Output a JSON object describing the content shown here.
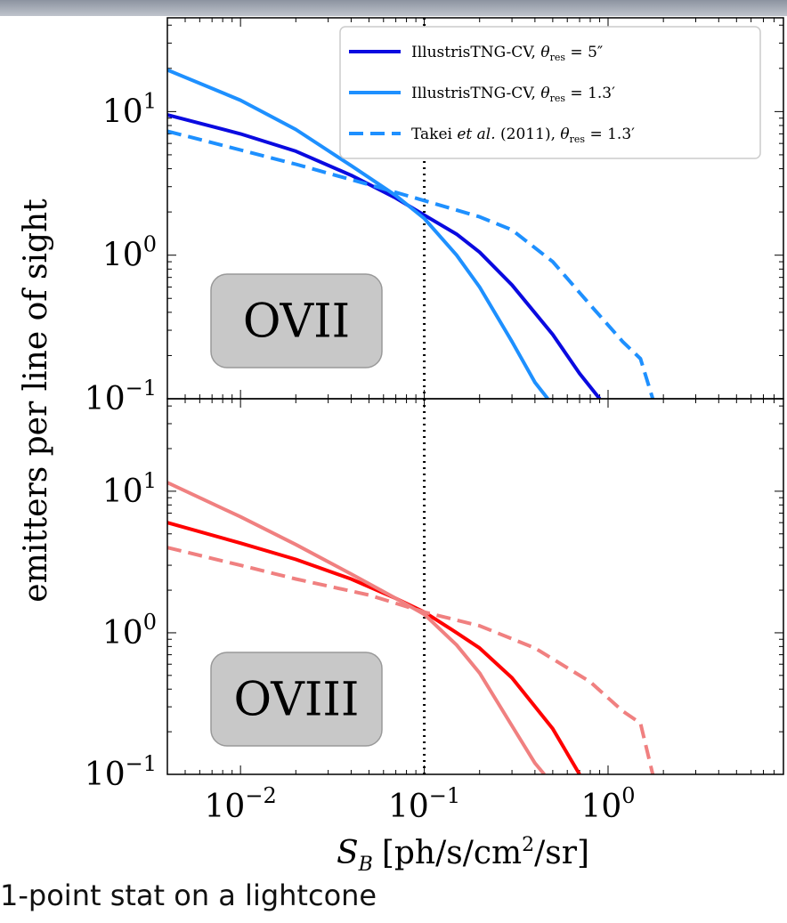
{
  "caption": "1-point stat on a lightcone",
  "chart_data": [
    {
      "type": "line",
      "panel": "top",
      "badge": "OVII",
      "xscale": "log",
      "yscale": "log",
      "xlim": [
        0.004,
        9
      ],
      "ylim": [
        0.1,
        45
      ],
      "xticks": [
        {
          "base": "10",
          "exp": "−2",
          "value": 0.01
        },
        {
          "base": "10",
          "exp": "−1",
          "value": 0.1
        },
        {
          "base": "10",
          "exp": "0",
          "value": 1
        }
      ],
      "yticks": [
        {
          "base": "10",
          "exp": "1",
          "value": 10
        },
        {
          "base": "10",
          "exp": "0",
          "value": 1
        },
        {
          "base": "10",
          "exp": "−1",
          "value": 0.1
        }
      ],
      "vline": 0.1,
      "legend_position": "top-right",
      "series": [
        {
          "name": "IllustrisTNG-CV, θres = 5″",
          "legend": "IllustrisTNG-CV,",
          "legend_math": "θ",
          "legend_sub": "res",
          "legend_rest": " = 5″",
          "color": "#0a0ae0",
          "dash": false,
          "x": [
            0.004,
            0.01,
            0.02,
            0.04,
            0.07,
            0.1,
            0.15,
            0.2,
            0.3,
            0.5,
            0.7,
            0.9
          ],
          "y": [
            9.5,
            7.0,
            5.3,
            3.6,
            2.5,
            1.9,
            1.4,
            1.05,
            0.62,
            0.28,
            0.15,
            0.1
          ]
        },
        {
          "name": "IllustrisTNG-CV, θres = 1.3′",
          "legend": "IllustrisTNG-CV,",
          "legend_math": "θ",
          "legend_sub": "res",
          "legend_rest": " = 1.3′",
          "color": "#1e90ff",
          "dash": false,
          "x": [
            0.004,
            0.01,
            0.02,
            0.04,
            0.07,
            0.1,
            0.15,
            0.2,
            0.3,
            0.4,
            0.47
          ],
          "y": [
            19.5,
            12.0,
            7.5,
            4.2,
            2.6,
            1.8,
            1.0,
            0.6,
            0.25,
            0.13,
            0.1
          ]
        },
        {
          "name": "Takei et al. (2011), θres = 1.3′",
          "legend": "Takei et al. (2011),",
          "legend_math": "θ",
          "legend_sub": "res",
          "legend_rest": " = 1.3′",
          "color": "#1e90ff",
          "dash": true,
          "x": [
            0.004,
            0.01,
            0.02,
            0.05,
            0.1,
            0.2,
            0.3,
            0.5,
            0.8,
            1.2,
            1.5,
            1.75
          ],
          "y": [
            7.3,
            5.4,
            4.3,
            3.1,
            2.4,
            1.85,
            1.5,
            0.9,
            0.45,
            0.25,
            0.19,
            0.1
          ]
        }
      ]
    },
    {
      "type": "line",
      "panel": "bottom",
      "badge": "OVIII",
      "xscale": "log",
      "yscale": "log",
      "xlim": [
        0.004,
        9
      ],
      "ylim": [
        0.1,
        45
      ],
      "xticks": [
        {
          "base": "10",
          "exp": "−2",
          "value": 0.01
        },
        {
          "base": "10",
          "exp": "−1",
          "value": 0.1
        },
        {
          "base": "10",
          "exp": "0",
          "value": 1
        }
      ],
      "yticks": [
        {
          "base": "10",
          "exp": "1",
          "value": 10
        },
        {
          "base": "10",
          "exp": "0",
          "value": 1
        },
        {
          "base": "10",
          "exp": "−1",
          "value": 0.1
        }
      ],
      "vline": 0.1,
      "xlabel": "S_B [ph/s/cm^2/sr]",
      "series": [
        {
          "color": "#ff0000",
          "dash": false,
          "x": [
            0.004,
            0.01,
            0.02,
            0.04,
            0.07,
            0.1,
            0.15,
            0.2,
            0.3,
            0.5,
            0.7
          ],
          "y": [
            6.0,
            4.3,
            3.3,
            2.4,
            1.75,
            1.4,
            1.0,
            0.78,
            0.48,
            0.21,
            0.1
          ]
        },
        {
          "color": "#f08080",
          "dash": false,
          "x": [
            0.004,
            0.01,
            0.02,
            0.04,
            0.07,
            0.1,
            0.15,
            0.2,
            0.3,
            0.4,
            0.45
          ],
          "y": [
            11.5,
            6.6,
            4.2,
            2.6,
            1.75,
            1.35,
            0.82,
            0.52,
            0.22,
            0.12,
            0.1
          ]
        },
        {
          "color": "#f08080",
          "dash": true,
          "x": [
            0.004,
            0.01,
            0.02,
            0.05,
            0.1,
            0.2,
            0.4,
            0.8,
            1.2,
            1.5,
            1.75
          ],
          "y": [
            4.0,
            3.0,
            2.4,
            1.85,
            1.4,
            1.12,
            0.78,
            0.45,
            0.28,
            0.23,
            0.1
          ]
        }
      ]
    }
  ],
  "ylabel": "emitters per line of sight",
  "xlabel_main": "S",
  "xlabel_sub": "B",
  "xlabel_units": "[ph/s/cm",
  "xlabel_sup": "2",
  "xlabel_tail": "/sr]"
}
